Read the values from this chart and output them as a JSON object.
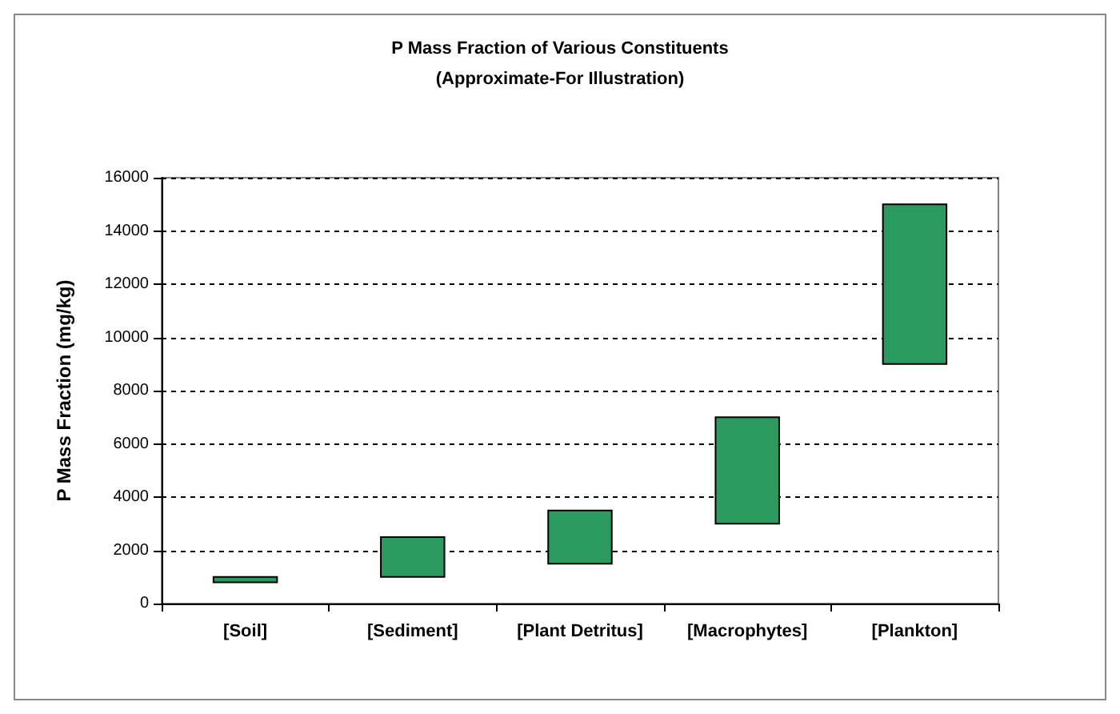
{
  "chart_data": {
    "type": "bar",
    "title": "P Mass Fraction of Various Constituents",
    "subtitle": "(Approximate-For Illustration)",
    "ylabel": "P Mass Fraction (mg/kg)",
    "categories": [
      "[Soil]",
      "[Sediment]",
      "[Plant Detritus]",
      "[Macrophytes]",
      "[Plankton]"
    ],
    "base": [
      800,
      1000,
      1500,
      3000,
      9000
    ],
    "values": [
      200,
      1500,
      2000,
      4000,
      6000
    ],
    "color": "#2a9a5e",
    "ylim": [
      0,
      16000
    ],
    "yticks": [
      0,
      2000,
      4000,
      6000,
      8000,
      10000,
      12000,
      14000,
      16000
    ],
    "grid": "y"
  }
}
